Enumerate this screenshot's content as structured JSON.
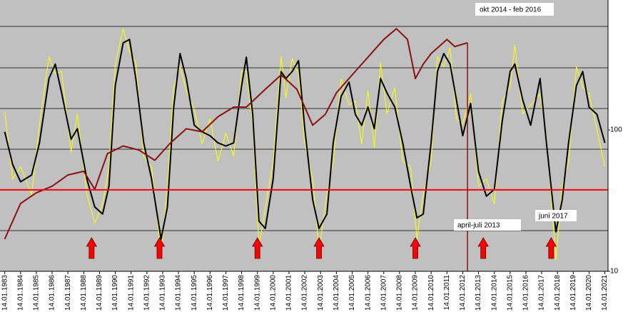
{
  "chart_data": {
    "type": "line",
    "log_y": true,
    "ylim": [
      10,
      830
    ],
    "yticks": [
      100,
      10
    ],
    "xlim": [
      1982.7,
      2021.2
    ],
    "xticks": [
      {
        "value": 1983,
        "label": "14.01.1983"
      },
      {
        "value": 1984,
        "label": "14.01.1984"
      },
      {
        "value": 1985,
        "label": "14.01.1985"
      },
      {
        "value": 1986,
        "label": "14.01.1986"
      },
      {
        "value": 1987,
        "label": "14.01.1987"
      },
      {
        "value": 1988,
        "label": "14.01.1988"
      },
      {
        "value": 1989,
        "label": "14.01.1989"
      },
      {
        "value": 1990,
        "label": "14.01.1990"
      },
      {
        "value": 1991,
        "label": "14.01.1991"
      },
      {
        "value": 1992,
        "label": "14.01.1992"
      },
      {
        "value": 1993,
        "label": "14.01.1993"
      },
      {
        "value": 1994,
        "label": "14.01.1994"
      },
      {
        "value": 1995,
        "label": "14.01.1995"
      },
      {
        "value": 1996,
        "label": "14.01.1996"
      },
      {
        "value": 1997,
        "label": "14.01.1997"
      },
      {
        "value": 1998,
        "label": "14.01.1998"
      },
      {
        "value": 1999,
        "label": "14.01.1999"
      },
      {
        "value": 2000,
        "label": "14.01.2000"
      },
      {
        "value": 2001,
        "label": "14.01.2001"
      },
      {
        "value": 2002,
        "label": "14.01.2002"
      },
      {
        "value": 2003,
        "label": "14.01.2003"
      },
      {
        "value": 2004,
        "label": "14.01.2004"
      },
      {
        "value": 2005,
        "label": "14.01.2005"
      },
      {
        "value": 2006,
        "label": "14.01.2006"
      },
      {
        "value": 2007,
        "label": "14.01.2007"
      },
      {
        "value": 2008,
        "label": "14.01.2008"
      },
      {
        "value": 2009,
        "label": "14.01.2009"
      },
      {
        "value": 2010,
        "label": "14.01.2010"
      },
      {
        "value": 2011,
        "label": "14.01.2011"
      },
      {
        "value": 2012,
        "label": "14.01.2012"
      },
      {
        "value": 2013,
        "label": "14.01.2013"
      },
      {
        "value": 2014,
        "label": "14.01.2014"
      },
      {
        "value": 2015,
        "label": "14.01.2015"
      },
      {
        "value": 2016,
        "label": "14.01.2016"
      },
      {
        "value": 2017,
        "label": "14.01.2017"
      },
      {
        "value": 2018,
        "label": "14.01.2018"
      },
      {
        "value": 2019,
        "label": "14.01.2019"
      },
      {
        "value": 2020,
        "label": "14.01.2020"
      },
      {
        "value": 2021,
        "label": "14.01.2021"
      }
    ],
    "series": [
      {
        "color": "#ffff00",
        "x": [
          1983,
          1983.5,
          1984,
          1984.7,
          1985.2,
          1985.8,
          1986.2,
          1986.6,
          1987.2,
          1987.6,
          1988.2,
          1988.7,
          1989.2,
          1989.6,
          1990.0,
          1990.5,
          1990.9,
          1991.3,
          1991.8,
          1992.3,
          1992.9,
          1993.3,
          1993.7,
          1994.1,
          1994.5,
          1995.0,
          1995.5,
          1996.0,
          1996.5,
          1997.0,
          1997.5,
          1998.0,
          1998.3,
          1998.7,
          1999.1,
          1999.5,
          2000.0,
          2000.5,
          2000.8,
          2001.2,
          2001.6,
          2002.0,
          2002.5,
          2002.9,
          2003.4,
          2003.8,
          2004.3,
          2004.8,
          2005.2,
          2005.6,
          2006.0,
          2006.4,
          2006.8,
          2007.2,
          2007.7,
          2008.2,
          2008.7,
          2009.1,
          2009.5,
          2010.0,
          2010.4,
          2010.8,
          2011.2,
          2011.6,
          2012.0,
          2012.5,
          2013.0,
          2013.5,
          2014.0,
          2014.5,
          2015.0,
          2015.3,
          2015.8,
          2016.3,
          2016.9,
          2017.3,
          2017.9,
          2018.3,
          2018.7,
          2019.2,
          2019.6,
          2020.0,
          2020.5,
          2021.0
        ],
        "values": [
          135,
          45,
          55,
          35,
          110,
          330,
          250,
          260,
          70,
          130,
          35,
          22,
          30,
          55,
          290,
          520,
          360,
          300,
          65,
          55,
          13,
          40,
          200,
          280,
          190,
          140,
          80,
          120,
          60,
          95,
          65,
          260,
          260,
          110,
          15,
          28,
          60,
          330,
          170,
          320,
          250,
          80,
          45,
          14,
          35,
          60,
          230,
          150,
          160,
          80,
          190,
          75,
          300,
          130,
          200,
          60,
          55,
          17,
          35,
          60,
          330,
          280,
          380,
          120,
          110,
          180,
          40,
          45,
          30,
          160,
          200,
          400,
          130,
          150,
          180,
          90,
          12,
          40,
          60,
          280,
          200,
          180,
          100,
          55
        ]
      },
      {
        "color": "#000000",
        "x": [
          1983,
          1983.5,
          1984,
          1984.7,
          1985.2,
          1985.8,
          1986.2,
          1986.6,
          1987.2,
          1987.6,
          1988.2,
          1988.7,
          1989.2,
          1989.6,
          1990.0,
          1990.5,
          1990.9,
          1991.3,
          1991.8,
          1992.3,
          1992.9,
          1993.3,
          1993.7,
          1994.1,
          1994.5,
          1995.0,
          1995.5,
          1996.0,
          1996.5,
          1997.0,
          1997.5,
          1998.0,
          1998.3,
          1998.7,
          1999.1,
          1999.5,
          2000.0,
          2000.5,
          2000.8,
          2001.2,
          2001.6,
          2002.0,
          2002.5,
          2002.9,
          2003.4,
          2003.8,
          2004.3,
          2004.8,
          2005.2,
          2005.6,
          2006.0,
          2006.4,
          2006.8,
          2007.2,
          2007.7,
          2008.2,
          2008.7,
          2009.1,
          2009.5,
          2010.0,
          2010.4,
          2010.8,
          2011.2,
          2011.6,
          2012.0,
          2012.5,
          2013.0,
          2013.5,
          2014.0,
          2014.5,
          2015.0,
          2015.3,
          2015.8,
          2016.3,
          2016.9,
          2017.3,
          2017.9,
          2018.3,
          2018.7,
          2019.2,
          2019.6,
          2020.0,
          2020.5,
          2021.0
        ],
        "values": [
          97,
          57,
          43,
          48,
          81,
          231,
          292,
          183,
          86,
          102,
          45,
          28.5,
          25.4,
          40,
          206,
          413,
          437,
          231,
          81,
          45,
          16.9,
          28.5,
          145,
          347,
          231,
          108,
          97,
          91,
          81,
          77,
          81,
          206,
          327,
          129,
          22.6,
          20.1,
          45,
          259,
          231,
          259,
          309,
          102,
          32,
          20.1,
          25.4,
          81,
          173,
          218,
          129,
          108,
          145,
          102,
          231,
          183,
          145,
          81,
          40,
          23.9,
          25.4,
          81,
          259,
          347,
          292,
          163,
          91,
          154,
          51,
          34,
          38,
          115,
          259,
          292,
          163,
          108,
          231,
          81,
          19,
          32,
          81,
          206,
          259,
          145,
          129,
          81
        ]
      },
      {
        "color": "#8b1010",
        "x": [
          1983,
          1984,
          1985,
          1986,
          1987,
          1988,
          1988.7,
          1989.5,
          1990.5,
          1991.5,
          1992.5,
          1993.5,
          1994.5,
          1995.5,
          1996.5,
          1997.5,
          1998.3,
          1999.5,
          2000.5,
          2001.5,
          2002.5,
          2003.3,
          2004,
          2005,
          2006,
          2007,
          2007.8,
          2008.5,
          2009,
          2009.5,
          2010,
          2011,
          2011.5,
          2012.3
        ],
        "values": [
          16.9,
          30.2,
          35.9,
          40,
          48,
          51,
          38,
          68,
          77,
          72,
          61,
          81,
          102,
          97,
          124,
          145,
          145,
          194,
          245,
          194,
          108,
          129,
          183,
          245,
          327,
          437,
          520,
          437,
          231,
          292,
          347,
          437,
          389,
          413
        ]
      }
    ],
    "reference_line": {
      "value": 37.7,
      "color": "#ff0000"
    },
    "vline": {
      "value": 2012.3,
      "color": "#8b1010"
    },
    "arrows": {
      "x": [
        1988.5,
        1992.8,
        1999.0,
        2002.9,
        2009.0,
        2013.3,
        2017.6
      ],
      "color": "#ff0000"
    },
    "annotations": [
      "okt 2014  - feb 2016",
      "april-juli 2013",
      "juni 2017"
    ]
  }
}
